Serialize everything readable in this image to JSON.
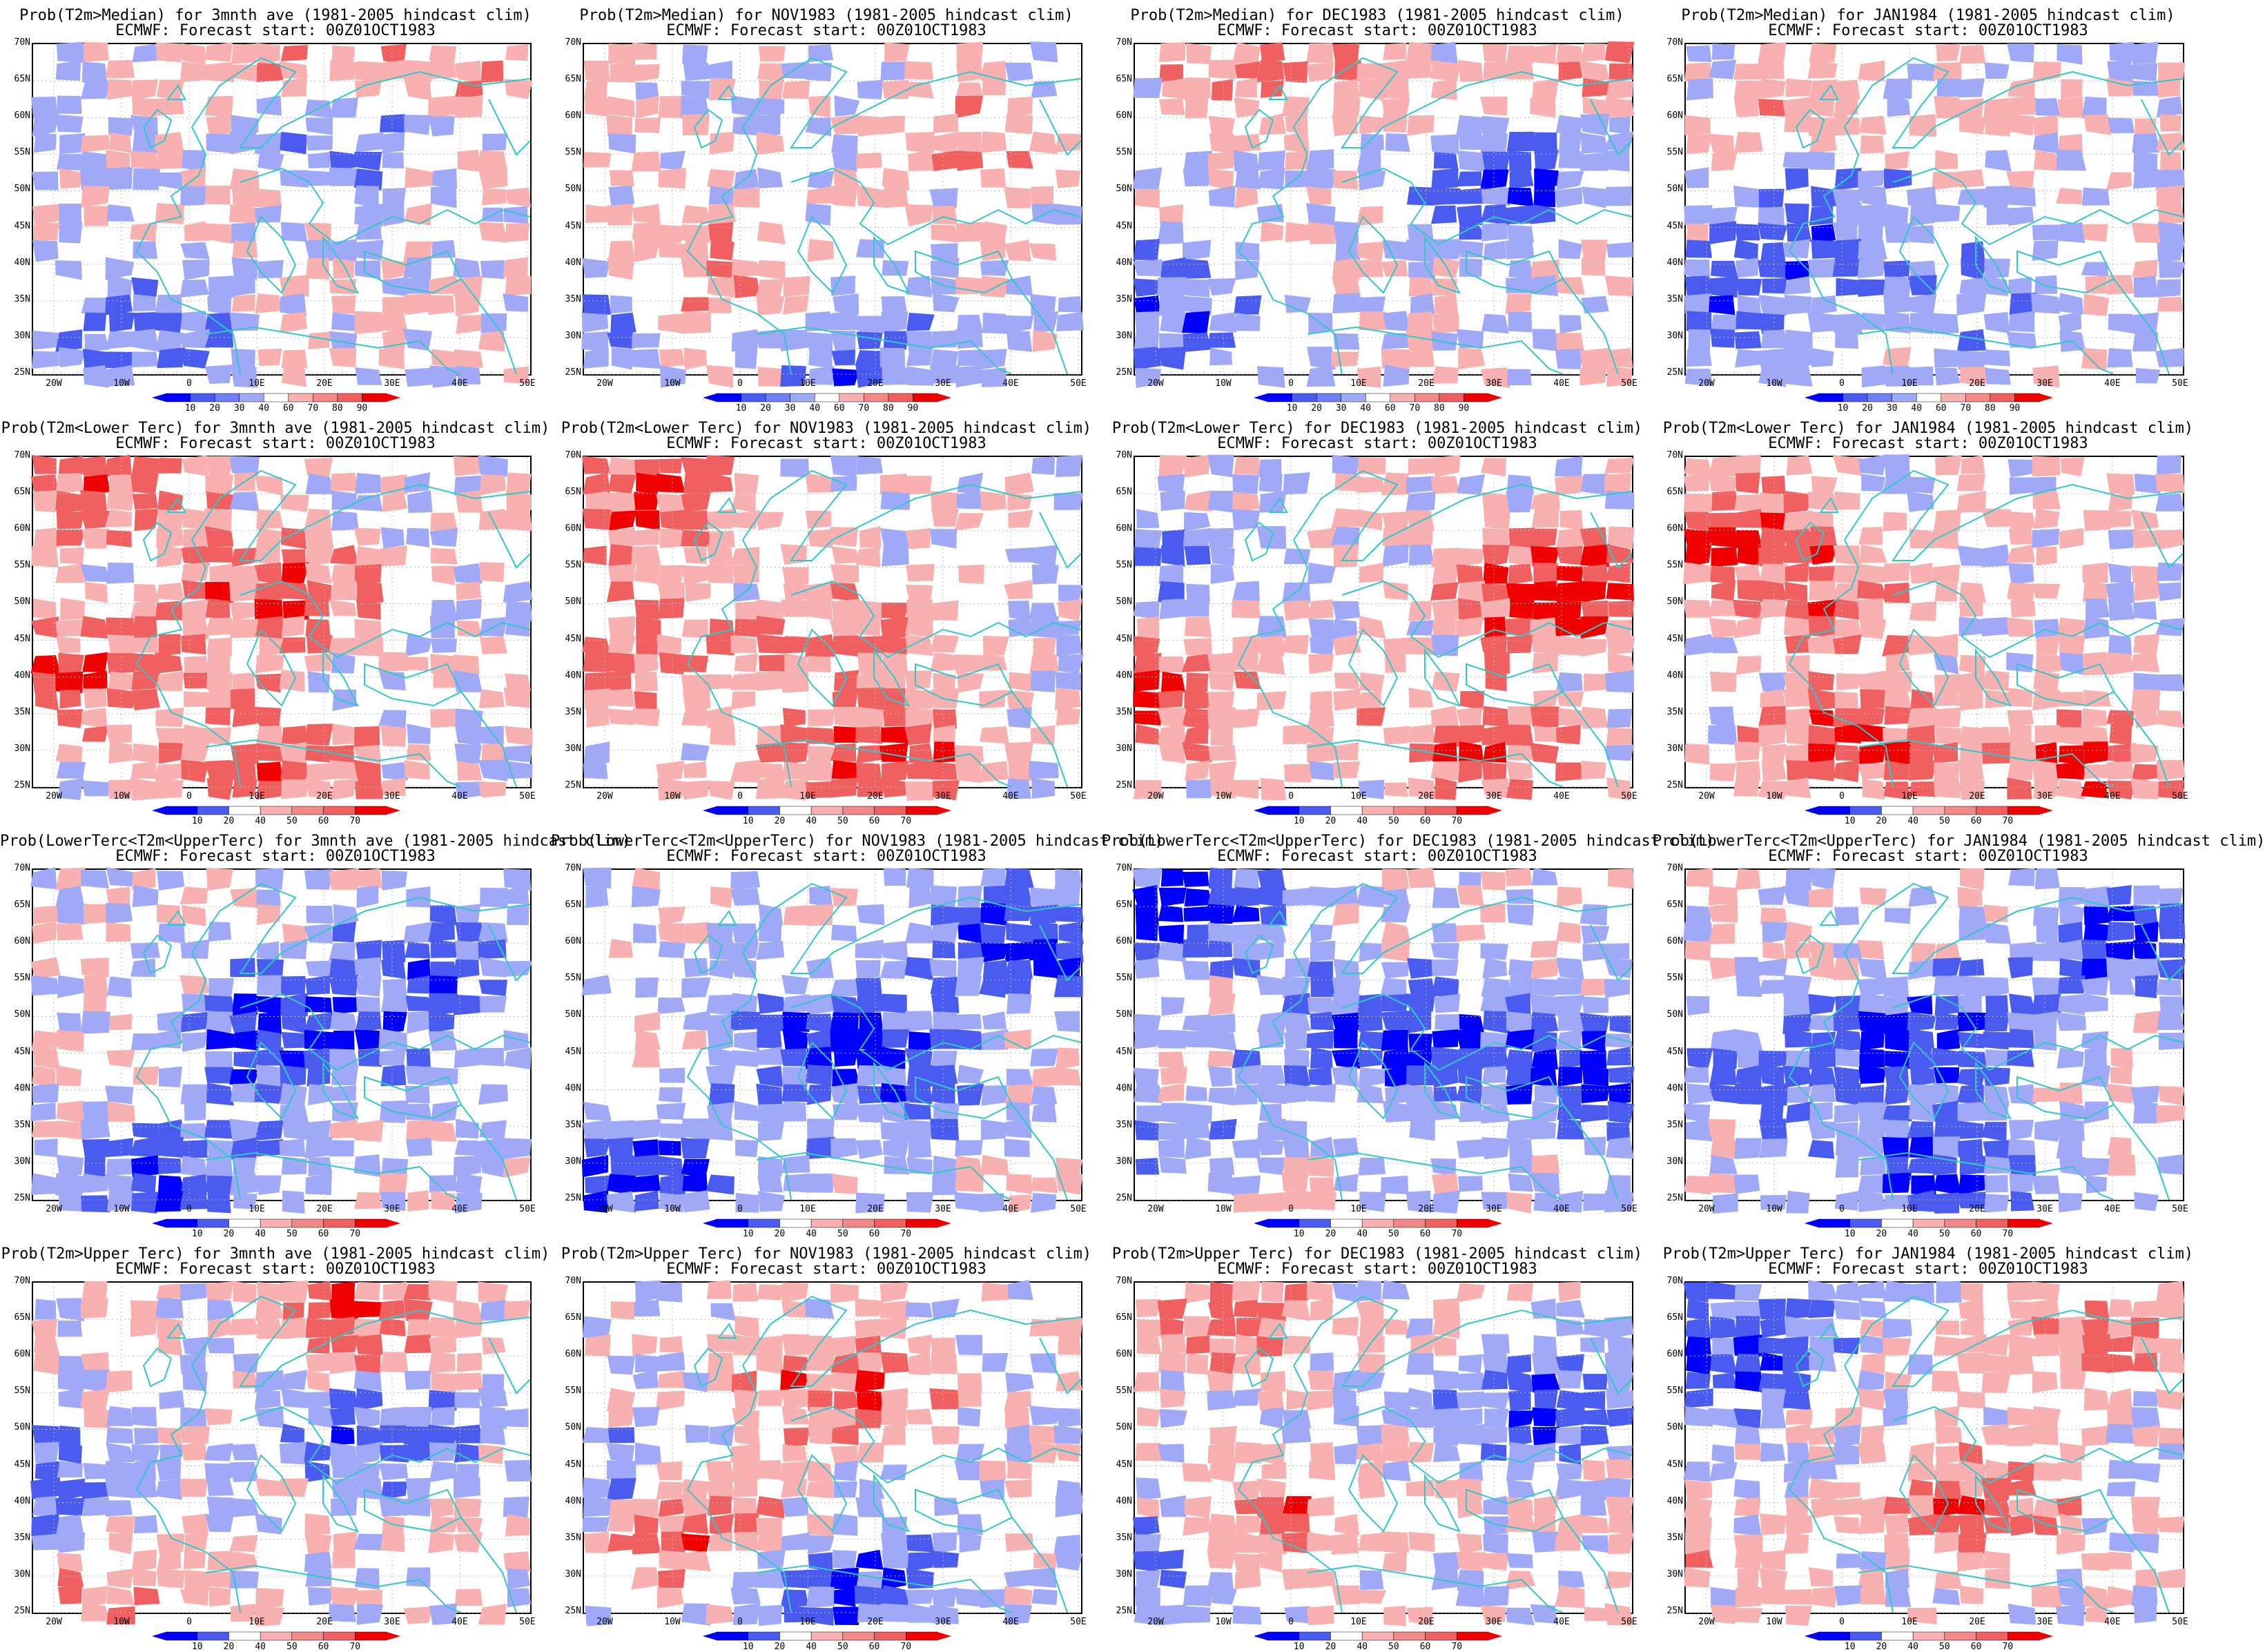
{
  "panels": [
    {
      "line1": "Prob(T2m>Median) for 3mnth ave (1981-2005 hindcast clim)",
      "line2": "ECMWF: Forecast start: 00Z01OCT1983",
      "scale": "median",
      "pattern": 0
    },
    {
      "line1": "Prob(T2m>Median) for NOV1983 (1981-2005 hindcast clim)",
      "line2": "ECMWF: Forecast start: 00Z01OCT1983",
      "scale": "median",
      "pattern": 1
    },
    {
      "line1": "Prob(T2m>Median) for DEC1983 (1981-2005 hindcast clim)",
      "line2": "ECMWF: Forecast start: 00Z01OCT1983",
      "scale": "median",
      "pattern": 2
    },
    {
      "line1": "Prob(T2m>Median) for JAN1984 (1981-2005 hindcast clim)",
      "line2": "ECMWF: Forecast start: 00Z01OCT1983",
      "scale": "median",
      "pattern": 3
    },
    {
      "line1": "Prob(T2m<Lower Terc) for 3mnth ave (1981-2005 hindcast clim)",
      "line2": "ECMWF: Forecast start: 00Z01OCT1983",
      "scale": "tercile",
      "pattern": 4
    },
    {
      "line1": "Prob(T2m<Lower Terc) for NOV1983 (1981-2005 hindcast clim)",
      "line2": "ECMWF: Forecast start: 00Z01OCT1983",
      "scale": "tercile",
      "pattern": 5
    },
    {
      "line1": "Prob(T2m<Lower Terc) for DEC1983 (1981-2005 hindcast clim)",
      "line2": "ECMWF: Forecast start: 00Z01OCT1983",
      "scale": "tercile",
      "pattern": 6
    },
    {
      "line1": "Prob(T2m<Lower Terc) for JAN1984 (1981-2005 hindcast clim)",
      "line2": "ECMWF: Forecast start: 00Z01OCT1983",
      "scale": "tercile",
      "pattern": 7
    },
    {
      "line1": "Prob(LowerTerc<T2m<UpperTerc) for 3mnth ave (1981-2005 hindcast clim)",
      "line2": "ECMWF: Forecast start: 00Z01OCT1983",
      "scale": "tercile",
      "pattern": 8
    },
    {
      "line1": "Prob(LowerTerc<T2m<UpperTerc) for NOV1983 (1981-2005 hindcast clim)",
      "line2": "ECMWF: Forecast start: 00Z01OCT1983",
      "scale": "tercile",
      "pattern": 9
    },
    {
      "line1": "Prob(LowerTerc<T2m<UpperTerc) for DEC1983 (1981-2005 hindcast clim)",
      "line2": "ECMWF: Forecast start: 00Z01OCT1983",
      "scale": "tercile",
      "pattern": 10
    },
    {
      "line1": "Prob(LowerTerc<T2m<UpperTerc) for JAN1984 (1981-2005 hindcast clim)",
      "line2": "ECMWF: Forecast start: 00Z01OCT1983",
      "scale": "tercile",
      "pattern": 11
    },
    {
      "line1": "Prob(T2m>Upper Terc) for 3mnth ave (1981-2005 hindcast clim)",
      "line2": "ECMWF: Forecast start: 00Z01OCT1983",
      "scale": "tercile",
      "pattern": 12
    },
    {
      "line1": "Prob(T2m>Upper Terc) for NOV1983 (1981-2005 hindcast clim)",
      "line2": "ECMWF: Forecast start: 00Z01OCT1983",
      "scale": "tercile",
      "pattern": 13
    },
    {
      "line1": "Prob(T2m>Upper Terc) for DEC1983 (1981-2005 hindcast clim)",
      "line2": "ECMWF: Forecast start: 00Z01OCT1983",
      "scale": "tercile",
      "pattern": 14
    },
    {
      "line1": "Prob(T2m>Upper Terc) for JAN1984 (1981-2005 hindcast clim)",
      "line2": "ECMWF: Forecast start: 00Z01OCT1983",
      "scale": "tercile",
      "pattern": 15
    }
  ],
  "lat_labels": [
    "70N",
    "65N",
    "60N",
    "55N",
    "50N",
    "45N",
    "40N",
    "35N",
    "30N",
    "25N"
  ],
  "lon_labels": [
    "20W",
    "10W",
    "0",
    "10E",
    "20E",
    "30E",
    "40E",
    "50E"
  ],
  "colorbars": {
    "median": {
      "labels": [
        "10",
        "20",
        "30",
        "40",
        "60",
        "70",
        "80",
        "90"
      ]
    },
    "tercile": {
      "labels": [
        "10",
        "20",
        "40",
        "50",
        "60",
        "70"
      ]
    }
  },
  "colors": {
    "blue_strong": "#0000ff",
    "blue_mid": "#4a5cf0",
    "blue_light": "#a0a8f8",
    "white": "#ffffff",
    "pink_light": "#f8b0b0",
    "red_mid": "#f06060",
    "red_strong": "#f00000",
    "coast": "#30c8c8"
  }
}
